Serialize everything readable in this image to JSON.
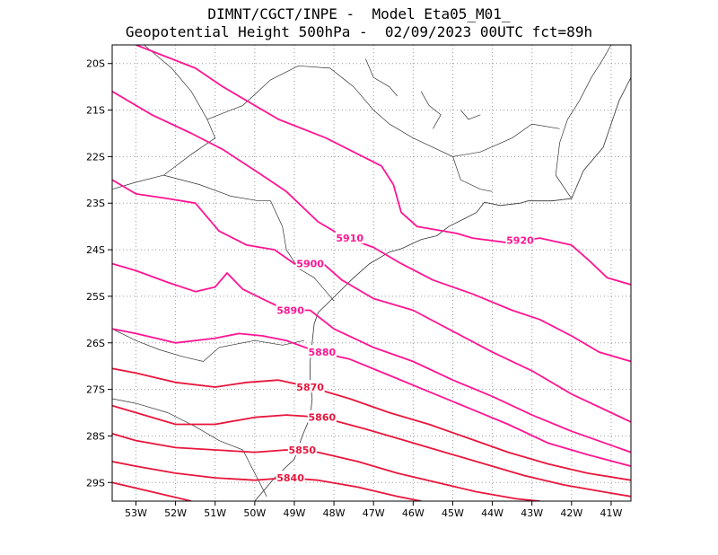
{
  "title": {
    "line1": "DIMNT/CGCT/INPE -  Model Eta05_M01_",
    "line2": "Geopotential Height 500hPa -  02/09/2023 00UTC fct=89h"
  },
  "map": {
    "lon_range": [
      -53.6,
      -40.5
    ],
    "lat_range": [
      -29.4,
      -19.6
    ],
    "grid": true,
    "lat_ticks": [
      {
        "value": -20,
        "label": "20S"
      },
      {
        "value": -21,
        "label": "21S"
      },
      {
        "value": -22,
        "label": "22S"
      },
      {
        "value": -23,
        "label": "23S"
      },
      {
        "value": -24,
        "label": "24S"
      },
      {
        "value": -25,
        "label": "25S"
      },
      {
        "value": -26,
        "label": "26S"
      },
      {
        "value": -27,
        "label": "27S"
      },
      {
        "value": -28,
        "label": "28S"
      },
      {
        "value": -29,
        "label": "29S"
      }
    ],
    "lon_ticks": [
      {
        "value": -53,
        "label": "53W"
      },
      {
        "value": -52,
        "label": "52W"
      },
      {
        "value": -51,
        "label": "51W"
      },
      {
        "value": -50,
        "label": "50W"
      },
      {
        "value": -49,
        "label": "49W"
      },
      {
        "value": -48,
        "label": "48W"
      },
      {
        "value": -47,
        "label": "47W"
      },
      {
        "value": -46,
        "label": "46W"
      },
      {
        "value": -45,
        "label": "45W"
      },
      {
        "value": -44,
        "label": "44W"
      },
      {
        "value": -43,
        "label": "43W"
      },
      {
        "value": -42,
        "label": "42W"
      },
      {
        "value": -41,
        "label": "41W"
      }
    ],
    "coastline": [
      [
        -40.5,
        -20.3
      ],
      [
        -40.8,
        -20.8
      ],
      [
        -41.0,
        -21.3
      ],
      [
        -41.2,
        -21.8
      ],
      [
        -41.7,
        -22.3
      ],
      [
        -42.0,
        -22.9
      ],
      [
        -42.5,
        -22.95
      ],
      [
        -43.1,
        -22.95
      ],
      [
        -43.3,
        -23.0
      ],
      [
        -43.8,
        -23.05
      ],
      [
        -44.2,
        -22.98
      ],
      [
        -44.4,
        -23.2
      ],
      [
        -44.7,
        -23.33
      ],
      [
        -45.1,
        -23.5
      ],
      [
        -45.4,
        -23.7
      ],
      [
        -45.8,
        -23.78
      ],
      [
        -46.3,
        -23.98
      ],
      [
        -46.6,
        -24.05
      ],
      [
        -47.1,
        -24.3
      ],
      [
        -47.5,
        -24.6
      ],
      [
        -47.8,
        -24.85
      ],
      [
        -48.1,
        -25.1
      ],
      [
        -48.4,
        -25.35
      ],
      [
        -48.5,
        -25.6
      ],
      [
        -48.55,
        -26.0
      ],
      [
        -48.6,
        -26.4
      ],
      [
        -48.6,
        -26.8
      ],
      [
        -48.55,
        -27.2
      ],
      [
        -48.6,
        -27.6
      ],
      [
        -48.8,
        -28.0
      ],
      [
        -49.0,
        -28.5
      ],
      [
        -49.5,
        -28.9
      ],
      [
        -49.8,
        -29.2
      ],
      [
        -50.0,
        -29.4
      ]
    ],
    "borders": [
      [
        [
          -52.8,
          -19.6
        ],
        [
          -52.1,
          -20.1
        ],
        [
          -51.6,
          -20.6
        ],
        [
          -51.2,
          -21.2
        ],
        [
          -51.0,
          -21.6
        ],
        [
          -51.6,
          -21.95
        ],
        [
          -52.3,
          -22.4
        ],
        [
          -53.0,
          -22.55
        ],
        [
          -53.6,
          -22.7
        ]
      ],
      [
        [
          -52.3,
          -22.4
        ],
        [
          -51.4,
          -22.6
        ],
        [
          -50.6,
          -22.85
        ],
        [
          -49.9,
          -22.95
        ],
        [
          -49.6,
          -22.95
        ],
        [
          -49.3,
          -23.5
        ],
        [
          -49.2,
          -24.0
        ],
        [
          -48.9,
          -24.4
        ],
        [
          -48.5,
          -24.6
        ],
        [
          -48.2,
          -24.9
        ],
        [
          -48.0,
          -25.1
        ]
      ],
      [
        [
          -53.6,
          -25.7
        ],
        [
          -53.0,
          -25.95
        ],
        [
          -52.4,
          -26.15
        ],
        [
          -51.8,
          -26.3
        ],
        [
          -51.3,
          -26.4
        ],
        [
          -50.9,
          -26.1
        ],
        [
          -50.6,
          -26.05
        ],
        [
          -50.0,
          -25.95
        ],
        [
          -49.3,
          -26.05
        ],
        [
          -48.75,
          -25.95
        ]
      ],
      [
        [
          -53.6,
          -27.2
        ],
        [
          -53.0,
          -27.3
        ],
        [
          -52.2,
          -27.5
        ],
        [
          -51.5,
          -27.8
        ],
        [
          -50.9,
          -28.1
        ],
        [
          -50.3,
          -28.3
        ],
        [
          -49.7,
          -29.3
        ]
      ],
      [
        [
          -51.2,
          -21.2
        ],
        [
          -50.3,
          -20.9
        ],
        [
          -49.6,
          -20.35
        ],
        [
          -48.9,
          -20.05
        ],
        [
          -48.1,
          -20.1
        ],
        [
          -47.5,
          -20.5
        ],
        [
          -47.0,
          -21.0
        ],
        [
          -46.6,
          -21.3
        ],
        [
          -46.0,
          -21.6
        ],
        [
          -45.0,
          -22.0
        ],
        [
          -44.8,
          -22.5
        ],
        [
          -44.3,
          -22.7
        ],
        [
          -44.0,
          -22.75
        ]
      ],
      [
        [
          -42.0,
          -22.9
        ],
        [
          -42.4,
          -22.4
        ],
        [
          -42.3,
          -21.7
        ],
        [
          -42.1,
          -21.2
        ],
        [
          -41.8,
          -20.8
        ],
        [
          -41.5,
          -20.3
        ],
        [
          -41.2,
          -19.9
        ],
        [
          -41.0,
          -19.6
        ]
      ],
      [
        [
          -45.0,
          -22.0
        ],
        [
          -44.3,
          -21.9
        ],
        [
          -43.5,
          -21.6
        ],
        [
          -43.0,
          -21.3
        ],
        [
          -42.3,
          -21.4
        ]
      ]
    ],
    "rivers": [
      [
        [
          -47.2,
          -19.9
        ],
        [
          -47.0,
          -20.3
        ],
        [
          -46.6,
          -20.5
        ],
        [
          -46.4,
          -20.7
        ]
      ],
      [
        [
          -45.8,
          -20.6
        ],
        [
          -45.6,
          -20.9
        ],
        [
          -45.3,
          -21.1
        ],
        [
          -45.5,
          -21.4
        ]
      ],
      [
        [
          -44.8,
          -21.0
        ],
        [
          -44.6,
          -21.2
        ],
        [
          -44.3,
          -21.1
        ]
      ]
    ]
  },
  "contours": [
    {
      "value": "5920",
      "label_at": [
        -43.3,
        -23.8
      ],
      "pts": [
        [
          -53.0,
          -19.6
        ],
        [
          -51.5,
          -20.1
        ],
        [
          -50.8,
          -20.5
        ],
        [
          -49.4,
          -21.2
        ],
        [
          -48.2,
          -21.6
        ],
        [
          -46.8,
          -22.2
        ],
        [
          -46.5,
          -22.6
        ],
        [
          -46.3,
          -23.2
        ],
        [
          -45.9,
          -23.5
        ],
        [
          -44.9,
          -23.65
        ],
        [
          -44.5,
          -23.75
        ],
        [
          -43.6,
          -23.85
        ],
        [
          -42.8,
          -23.75
        ],
        [
          -42.0,
          -23.9
        ],
        [
          -41.6,
          -24.2
        ],
        [
          -41.1,
          -24.6
        ],
        [
          -40.5,
          -24.75
        ]
      ]
    },
    {
      "value": "5910",
      "label_at": [
        -47.6,
        -23.75
      ],
      "pts": [
        [
          -53.6,
          -20.6
        ],
        [
          -52.6,
          -21.1
        ],
        [
          -51.6,
          -21.5
        ],
        [
          -50.8,
          -21.85
        ],
        [
          -49.9,
          -22.35
        ],
        [
          -49.2,
          -22.75
        ],
        [
          -48.4,
          -23.4
        ],
        [
          -47.8,
          -23.7
        ],
        [
          -47.0,
          -23.95
        ],
        [
          -46.3,
          -24.3
        ],
        [
          -45.5,
          -24.65
        ],
        [
          -44.5,
          -24.95
        ],
        [
          -43.5,
          -25.3
        ],
        [
          -42.8,
          -25.5
        ],
        [
          -42.0,
          -25.85
        ],
        [
          -41.3,
          -26.2
        ],
        [
          -40.5,
          -26.4
        ]
      ]
    },
    {
      "value": "5900",
      "label_at": [
        -48.6,
        -24.3
      ],
      "pts": [
        [
          -53.6,
          -22.5
        ],
        [
          -53.0,
          -22.8
        ],
        [
          -52.2,
          -22.9
        ],
        [
          -51.5,
          -23.0
        ],
        [
          -50.9,
          -23.6
        ],
        [
          -50.2,
          -23.9
        ],
        [
          -49.5,
          -24.0
        ],
        [
          -49.0,
          -24.3
        ],
        [
          -48.4,
          -24.2
        ],
        [
          -47.8,
          -24.65
        ],
        [
          -47.0,
          -25.05
        ],
        [
          -46.0,
          -25.3
        ],
        [
          -45.0,
          -25.75
        ],
        [
          -44.0,
          -26.2
        ],
        [
          -43.0,
          -26.6
        ],
        [
          -42.0,
          -27.1
        ],
        [
          -41.0,
          -27.5
        ],
        [
          -40.5,
          -27.7
        ]
      ]
    },
    {
      "value": "5890",
      "label_at": [
        -49.1,
        -25.3
      ],
      "pts": [
        [
          -53.6,
          -24.3
        ],
        [
          -53.0,
          -24.45
        ],
        [
          -52.2,
          -24.7
        ],
        [
          -51.5,
          -24.9
        ],
        [
          -51.0,
          -24.8
        ],
        [
          -50.7,
          -24.5
        ],
        [
          -50.3,
          -24.85
        ],
        [
          -49.7,
          -25.1
        ],
        [
          -49.2,
          -25.3
        ],
        [
          -48.6,
          -25.3
        ],
        [
          -48.0,
          -25.7
        ],
        [
          -47.0,
          -26.1
        ],
        [
          -46.0,
          -26.4
        ],
        [
          -45.0,
          -26.8
        ],
        [
          -44.0,
          -27.15
        ],
        [
          -43.0,
          -27.55
        ],
        [
          -42.0,
          -27.9
        ],
        [
          -41.0,
          -28.2
        ],
        [
          -40.5,
          -28.35
        ]
      ]
    },
    {
      "value": "5880",
      "label_at": [
        -48.3,
        -26.2
      ],
      "pts": [
        [
          -53.6,
          -25.7
        ],
        [
          -53.0,
          -25.8
        ],
        [
          -52.0,
          -26.0
        ],
        [
          -51.0,
          -25.9
        ],
        [
          -50.4,
          -25.8
        ],
        [
          -49.8,
          -25.85
        ],
        [
          -49.2,
          -25.95
        ],
        [
          -48.4,
          -26.2
        ],
        [
          -47.6,
          -26.35
        ],
        [
          -46.6,
          -26.7
        ],
        [
          -45.6,
          -27.05
        ],
        [
          -44.6,
          -27.4
        ],
        [
          -43.6,
          -27.75
        ],
        [
          -42.6,
          -28.15
        ],
        [
          -41.6,
          -28.4
        ],
        [
          -40.5,
          -28.65
        ]
      ]
    },
    {
      "value": "5870",
      "label_at": [
        -48.6,
        -26.95
      ],
      "pts": [
        [
          -53.6,
          -26.55
        ],
        [
          -53.0,
          -26.65
        ],
        [
          -52.0,
          -26.85
        ],
        [
          -51.0,
          -26.95
        ],
        [
          -50.2,
          -26.85
        ],
        [
          -49.4,
          -26.8
        ],
        [
          -48.6,
          -26.95
        ],
        [
          -47.6,
          -27.2
        ],
        [
          -46.6,
          -27.5
        ],
        [
          -45.6,
          -27.75
        ],
        [
          -44.6,
          -28.05
        ],
        [
          -43.6,
          -28.35
        ],
        [
          -42.6,
          -28.6
        ],
        [
          -41.6,
          -28.8
        ],
        [
          -40.5,
          -28.95
        ]
      ]
    },
    {
      "value": "5860",
      "label_at": [
        -48.3,
        -27.6
      ],
      "pts": [
        [
          -53.6,
          -27.35
        ],
        [
          -53.0,
          -27.5
        ],
        [
          -52.0,
          -27.75
        ],
        [
          -51.0,
          -27.75
        ],
        [
          -50.0,
          -27.6
        ],
        [
          -49.2,
          -27.55
        ],
        [
          -48.3,
          -27.6
        ],
        [
          -47.2,
          -27.85
        ],
        [
          -46.2,
          -28.1
        ],
        [
          -45.2,
          -28.35
        ],
        [
          -44.2,
          -28.6
        ],
        [
          -43.2,
          -28.85
        ],
        [
          -42.2,
          -29.05
        ],
        [
          -41.2,
          -29.2
        ],
        [
          -40.5,
          -29.3
        ]
      ]
    },
    {
      "value": "5850",
      "label_at": [
        -48.8,
        -28.3
      ],
      "pts": [
        [
          -53.6,
          -27.95
        ],
        [
          -53.0,
          -28.1
        ],
        [
          -52.0,
          -28.25
        ],
        [
          -51.0,
          -28.3
        ],
        [
          -50.0,
          -28.35
        ],
        [
          -49.2,
          -28.3
        ],
        [
          -48.4,
          -28.35
        ],
        [
          -47.4,
          -28.55
        ],
        [
          -46.4,
          -28.8
        ],
        [
          -45.4,
          -29.0
        ],
        [
          -44.4,
          -29.2
        ],
        [
          -43.4,
          -29.35
        ],
        [
          -42.8,
          -29.4
        ]
      ]
    },
    {
      "value": "5840",
      "label_at": [
        -49.1,
        -28.9
      ],
      "pts": [
        [
          -53.6,
          -28.55
        ],
        [
          -53.0,
          -28.65
        ],
        [
          -52.0,
          -28.8
        ],
        [
          -51.0,
          -28.9
        ],
        [
          -50.0,
          -28.95
        ],
        [
          -49.2,
          -28.9
        ],
        [
          -48.4,
          -28.95
        ],
        [
          -47.4,
          -29.1
        ],
        [
          -46.4,
          -29.3
        ],
        [
          -45.8,
          -29.4
        ]
      ]
    },
    {
      "value": "",
      "label_at": null,
      "pts": [
        [
          -53.6,
          -29.0
        ],
        [
          -52.6,
          -29.2
        ],
        [
          -51.6,
          -29.4
        ]
      ]
    }
  ],
  "colors": {
    "contour_high": "#ff1493",
    "contour_low": "#e8163c",
    "map_lines": "#333333",
    "grid": "#999999",
    "frame": "#000000",
    "background": "#ffffff"
  }
}
